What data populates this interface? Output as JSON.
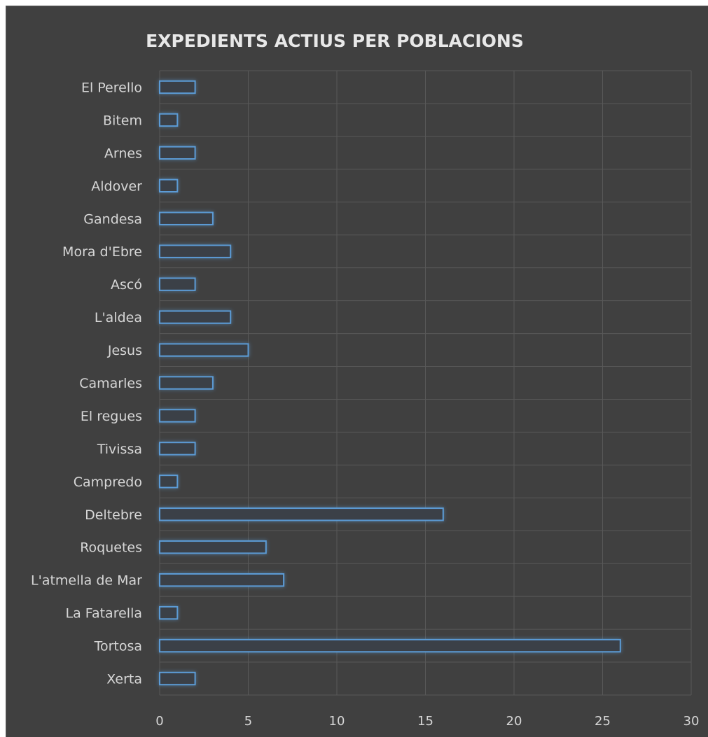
{
  "chart_data": {
    "type": "bar",
    "orientation": "horizontal",
    "title": "EXPEDIENTS ACTIUS PER POBLACIONS",
    "categories": [
      "El Perello",
      "Bitem",
      "Arnes",
      "Aldover",
      "Gandesa",
      "Mora d'Ebre",
      "Ascó",
      "L'aldea",
      "Jesus",
      "Camarles",
      "El regues",
      "Tivissa",
      "Campredo",
      "Deltebre",
      "Roquetes",
      "L'atmella de Mar",
      "La Fatarella",
      "Tortosa",
      "Xerta"
    ],
    "values": [
      2,
      1,
      2,
      1,
      3,
      4,
      2,
      4,
      5,
      3,
      2,
      2,
      1,
      16,
      6,
      7,
      1,
      26,
      2
    ],
    "xlim": [
      0,
      30
    ],
    "xticks": [
      0,
      5,
      10,
      15,
      20,
      25,
      30
    ],
    "grid": "vertical",
    "legend": "none",
    "colors": {
      "background": "#404040",
      "bar_outline": "#5b9bd5",
      "gridline": "#585858",
      "text": "#d6d6d6"
    }
  }
}
